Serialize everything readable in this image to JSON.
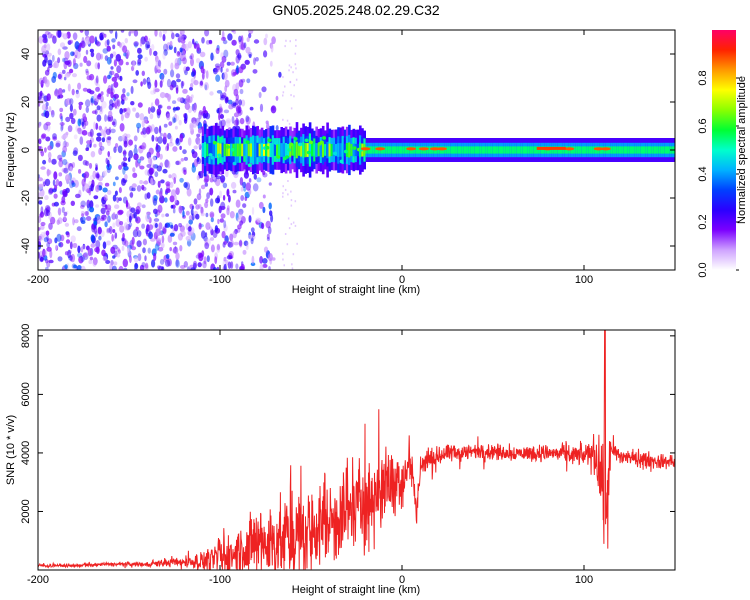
{
  "chart_data": [
    {
      "type": "heatmap",
      "title": "GN05.2025.248.02.29.C32",
      "xlabel": "Height of straight line (km)",
      "ylabel": "Frequency (Hz)",
      "xlim": [
        -200,
        150
      ],
      "ylim": [
        -50,
        50
      ],
      "xticks": [
        -200,
        -100,
        0,
        100
      ],
      "yticks": [
        -40,
        -20,
        0,
        20,
        40
      ],
      "colorbar": {
        "label": "Normalized spectral amplitude",
        "range": [
          0,
          1
        ],
        "ticks": [
          "0.0",
          "0.2",
          "0.4",
          "0.6",
          "0.8"
        ],
        "stops": [
          "#ffffff",
          "#cfa3ff",
          "#7b00ff",
          "#2b00ff",
          "#0040ff",
          "#00b3ff",
          "#00ffcc",
          "#00ff33",
          "#8cff00",
          "#ffff00",
          "#ff9900",
          "#ff2200",
          "#ff0066"
        ]
      },
      "features": {
        "broadband_noise_x": [
          -200,
          -90
        ],
        "narrow_band_center_hz": 0,
        "narrow_band_halfwidth_hz": 5,
        "high_amplitude_spots_x": [
          -20,
          -12,
          5,
          12,
          18,
          22,
          80,
          92,
          108,
          112
        ]
      }
    },
    {
      "type": "line",
      "xlabel": "Height of straight line (km)",
      "ylabel": "SNR (10 * v/v)",
      "xlim": [
        -200,
        150
      ],
      "ylim": [
        0,
        8200
      ],
      "xticks": [
        -200,
        -100,
        0,
        100
      ],
      "yticks": [
        2000,
        4000,
        6000,
        8000
      ],
      "color": "#ee2222",
      "series": [
        {
          "name": "SNR",
          "x": [
            -200,
            -180,
            -160,
            -140,
            -120,
            -110,
            -100,
            -90,
            -80,
            -70,
            -60,
            -50,
            -40,
            -30,
            -20,
            -10,
            0,
            5,
            8,
            10,
            12,
            20,
            30,
            40,
            50,
            60,
            70,
            80,
            90,
            100,
            105,
            108,
            110,
            112,
            114,
            116,
            120,
            130,
            140,
            150
          ],
          "y": [
            150,
            150,
            200,
            200,
            280,
            300,
            380,
            600,
            900,
            1000,
            1100,
            1300,
            1700,
            2100,
            2400,
            2800,
            3200,
            3600,
            2000,
            3500,
            3600,
            3900,
            4000,
            4050,
            4050,
            4000,
            4000,
            4000,
            3950,
            3900,
            4100,
            3500,
            3000,
            1500,
            3800,
            4000,
            3900,
            3800,
            3700,
            3700
          ],
          "noise": [
            25,
            25,
            30,
            40,
            80,
            150,
            300,
            450,
            600,
            700,
            700,
            700,
            700,
            800,
            800,
            600,
            500,
            400,
            300,
            300,
            200,
            150,
            150,
            130,
            130,
            130,
            130,
            140,
            150,
            170,
            250,
            500,
            600,
            800,
            400,
            200,
            150,
            120,
            120,
            120
          ],
          "spike": {
            "x": 111.5,
            "y": 8200
          }
        }
      ]
    }
  ]
}
